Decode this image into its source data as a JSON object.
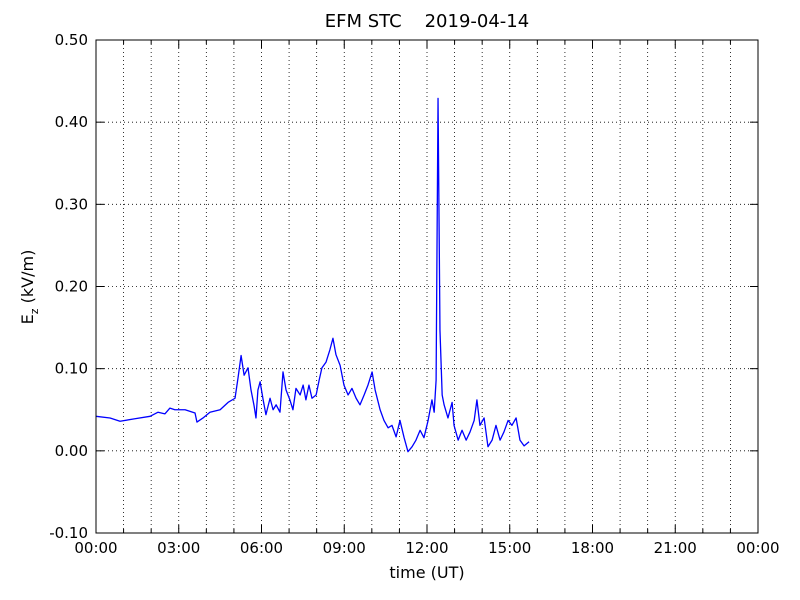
{
  "chart_data": {
    "type": "line",
    "title": "EFM STC    2019-04-14",
    "xlabel": "time (UT)",
    "ylabel": {
      "main": "E",
      "sub": "z",
      "unit": " (kV/m)"
    },
    "xlim": [
      0,
      24
    ],
    "ylim": [
      -0.1,
      0.5
    ],
    "xticks": [
      {
        "value": 0,
        "label": "00:00"
      },
      {
        "value": 3,
        "label": "03:00"
      },
      {
        "value": 6,
        "label": "06:00"
      },
      {
        "value": 9,
        "label": "09:00"
      },
      {
        "value": 12,
        "label": "12:00"
      },
      {
        "value": 15,
        "label": "15:00"
      },
      {
        "value": 18,
        "label": "18:00"
      },
      {
        "value": 21,
        "label": "21:00"
      },
      {
        "value": 24,
        "label": "00:00"
      }
    ],
    "xminorticks": [
      1,
      2,
      4,
      5,
      7,
      8,
      10,
      11,
      13,
      14,
      16,
      17,
      19,
      20,
      22,
      23
    ],
    "yticks": [
      {
        "value": -0.1,
        "label": "-0.10"
      },
      {
        "value": 0,
        "label": "0.00"
      },
      {
        "value": 0.1,
        "label": "0.10"
      },
      {
        "value": 0.2,
        "label": "0.20"
      },
      {
        "value": 0.3,
        "label": "0.30"
      },
      {
        "value": 0.4,
        "label": "0.40"
      },
      {
        "value": 0.5,
        "label": "0.50"
      }
    ],
    "grid": true,
    "series": [
      {
        "color": "#0000ff",
        "x": [
          0.0,
          0.51,
          0.87,
          1.41,
          1.96,
          2.25,
          2.5,
          2.68,
          2.86,
          3.23,
          3.59,
          3.66,
          3.88,
          4.13,
          4.5,
          4.79,
          5.04,
          5.15,
          5.26,
          5.37,
          5.51,
          5.62,
          5.73,
          5.8,
          5.87,
          5.95,
          6.06,
          6.16,
          6.31,
          6.42,
          6.53,
          6.67,
          6.78,
          6.89,
          7.03,
          7.14,
          7.25,
          7.4,
          7.51,
          7.61,
          7.72,
          7.83,
          7.98,
          8.09,
          8.19,
          8.34,
          8.48,
          8.59,
          8.7,
          8.85,
          8.99,
          9.14,
          9.28,
          9.43,
          9.57,
          9.72,
          9.86,
          10.01,
          10.12,
          10.3,
          10.44,
          10.59,
          10.73,
          10.88,
          11.02,
          11.17,
          11.31,
          11.46,
          11.6,
          11.75,
          11.89,
          12.04,
          12.18,
          12.26,
          12.33,
          12.4,
          12.47,
          12.55,
          12.62,
          12.76,
          12.91,
          12.98,
          13.13,
          13.27,
          13.42,
          13.56,
          13.71,
          13.81,
          13.92,
          14.07,
          14.21,
          14.36,
          14.5,
          14.65,
          14.79,
          14.94,
          15.08,
          15.23,
          15.37,
          15.52,
          15.7
        ],
        "values": [
          0.042,
          0.04,
          0.036,
          0.039,
          0.042,
          0.047,
          0.045,
          0.052,
          0.05,
          0.05,
          0.046,
          0.035,
          0.04,
          0.047,
          0.05,
          0.059,
          0.064,
          0.089,
          0.116,
          0.092,
          0.101,
          0.074,
          0.055,
          0.04,
          0.074,
          0.084,
          0.062,
          0.044,
          0.064,
          0.05,
          0.056,
          0.047,
          0.096,
          0.074,
          0.062,
          0.05,
          0.076,
          0.068,
          0.08,
          0.062,
          0.08,
          0.064,
          0.068,
          0.086,
          0.101,
          0.108,
          0.123,
          0.137,
          0.117,
          0.104,
          0.08,
          0.068,
          0.076,
          0.064,
          0.056,
          0.068,
          0.08,
          0.096,
          0.074,
          0.05,
          0.037,
          0.028,
          0.031,
          0.017,
          0.037,
          0.016,
          -0.001,
          0.005,
          0.013,
          0.025,
          0.016,
          0.037,
          0.062,
          0.047,
          0.086,
          0.429,
          0.147,
          0.068,
          0.056,
          0.04,
          0.059,
          0.031,
          0.013,
          0.025,
          0.013,
          0.023,
          0.037,
          0.062,
          0.031,
          0.04,
          0.005,
          0.013,
          0.031,
          0.013,
          0.023,
          0.037,
          0.031,
          0.04,
          0.013,
          0.006,
          0.011
        ]
      }
    ]
  }
}
